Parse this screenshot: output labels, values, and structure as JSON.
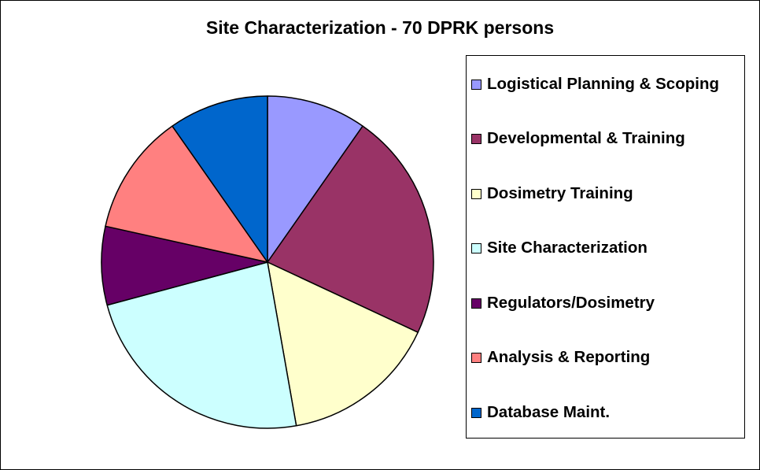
{
  "chart_data": {
    "type": "pie",
    "title": "Site Characterization - 70 DPRK persons",
    "legend_position": "right",
    "slices": [
      {
        "label": "Logistical Planning & Scoping",
        "value": 7,
        "color": "#9999FF"
      },
      {
        "label": "Developmental & Training",
        "value": 16,
        "color": "#993366"
      },
      {
        "label": "Dosimetry Training",
        "value": 11,
        "color": "#FFFFCC"
      },
      {
        "label": "Site Characterization",
        "value": 17,
        "color": "#CCFFFF"
      },
      {
        "label": "Regulators/Dosimetry",
        "value": 5.5,
        "color": "#660066"
      },
      {
        "label": "Analysis & Reporting",
        "value": 8.5,
        "color": "#FF8080"
      },
      {
        "label": "Database Maint.",
        "value": 7,
        "color": "#0066CC"
      }
    ]
  }
}
